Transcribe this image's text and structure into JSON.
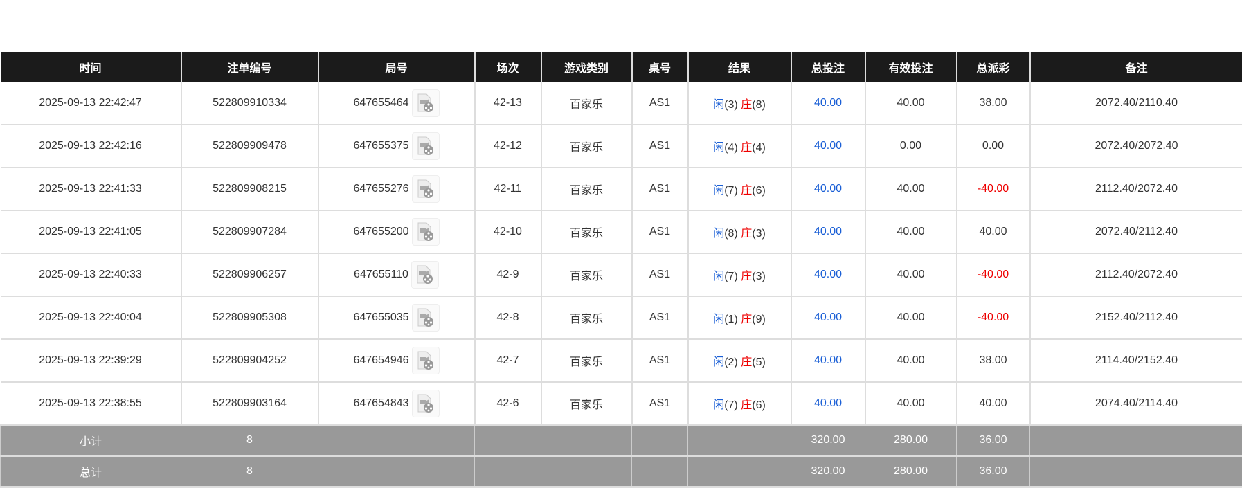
{
  "headers": [
    "时间",
    "注单编号",
    "局号",
    "场次",
    "游戏类别",
    "桌号",
    "结果",
    "总投注",
    "有效投注",
    "总派彩",
    "备注"
  ],
  "rows": [
    {
      "time": "2025-09-13 22:42:47",
      "bet_id": "522809910334",
      "round": "647655464",
      "session": "42-13",
      "game": "百家乐",
      "table": "AS1",
      "player": "闲",
      "player_score": "(3)",
      "banker": "庄",
      "banker_score": "(8)",
      "total_bet": "40.00",
      "valid_bet": "40.00",
      "payout": "38.00",
      "payout_negative": false,
      "note": "2072.40/2110.40"
    },
    {
      "time": "2025-09-13 22:42:16",
      "bet_id": "522809909478",
      "round": "647655375",
      "session": "42-12",
      "game": "百家乐",
      "table": "AS1",
      "player": "闲",
      "player_score": "(4)",
      "banker": "庄",
      "banker_score": "(4)",
      "total_bet": "40.00",
      "valid_bet": "0.00",
      "payout": "0.00",
      "payout_negative": false,
      "note": "2072.40/2072.40"
    },
    {
      "time": "2025-09-13 22:41:33",
      "bet_id": "522809908215",
      "round": "647655276",
      "session": "42-11",
      "game": "百家乐",
      "table": "AS1",
      "player": "闲",
      "player_score": "(7)",
      "banker": "庄",
      "banker_score": "(6)",
      "total_bet": "40.00",
      "valid_bet": "40.00",
      "payout": "-40.00",
      "payout_negative": true,
      "note": "2112.40/2072.40"
    },
    {
      "time": "2025-09-13 22:41:05",
      "bet_id": "522809907284",
      "round": "647655200",
      "session": "42-10",
      "game": "百家乐",
      "table": "AS1",
      "player": "闲",
      "player_score": "(8)",
      "banker": "庄",
      "banker_score": "(3)",
      "total_bet": "40.00",
      "valid_bet": "40.00",
      "payout": "40.00",
      "payout_negative": false,
      "note": "2072.40/2112.40"
    },
    {
      "time": "2025-09-13 22:40:33",
      "bet_id": "522809906257",
      "round": "647655110",
      "session": "42-9",
      "game": "百家乐",
      "table": "AS1",
      "player": "闲",
      "player_score": "(7)",
      "banker": "庄",
      "banker_score": "(3)",
      "total_bet": "40.00",
      "valid_bet": "40.00",
      "payout": "-40.00",
      "payout_negative": true,
      "note": "2112.40/2072.40"
    },
    {
      "time": "2025-09-13 22:40:04",
      "bet_id": "522809905308",
      "round": "647655035",
      "session": "42-8",
      "game": "百家乐",
      "table": "AS1",
      "player": "闲",
      "player_score": "(1)",
      "banker": "庄",
      "banker_score": "(9)",
      "total_bet": "40.00",
      "valid_bet": "40.00",
      "payout": "-40.00",
      "payout_negative": true,
      "note": "2152.40/2112.40"
    },
    {
      "time": "2025-09-13 22:39:29",
      "bet_id": "522809904252",
      "round": "647654946",
      "session": "42-7",
      "game": "百家乐",
      "table": "AS1",
      "player": "闲",
      "player_score": "(2)",
      "banker": "庄",
      "banker_score": "(5)",
      "total_bet": "40.00",
      "valid_bet": "40.00",
      "payout": "38.00",
      "payout_negative": false,
      "note": "2114.40/2152.40"
    },
    {
      "time": "2025-09-13 22:38:55",
      "bet_id": "522809903164",
      "round": "647654843",
      "session": "42-6",
      "game": "百家乐",
      "table": "AS1",
      "player": "闲",
      "player_score": "(7)",
      "banker": "庄",
      "banker_score": "(6)",
      "total_bet": "40.00",
      "valid_bet": "40.00",
      "payout": "40.00",
      "payout_negative": false,
      "note": "2074.40/2114.40"
    }
  ],
  "summary": [
    {
      "label": "小计",
      "count": "8",
      "total_bet": "320.00",
      "valid_bet": "280.00",
      "payout": "36.00"
    },
    {
      "label": "总计",
      "count": "8",
      "total_bet": "320.00",
      "valid_bet": "280.00",
      "payout": "36.00"
    }
  ],
  "icons": {
    "replay": "video-replay-icon"
  },
  "colors": {
    "header_bg": "#1b1b1b",
    "player": "#1a5fd6",
    "banker": "#e00000",
    "summary_bg": "#999999"
  }
}
